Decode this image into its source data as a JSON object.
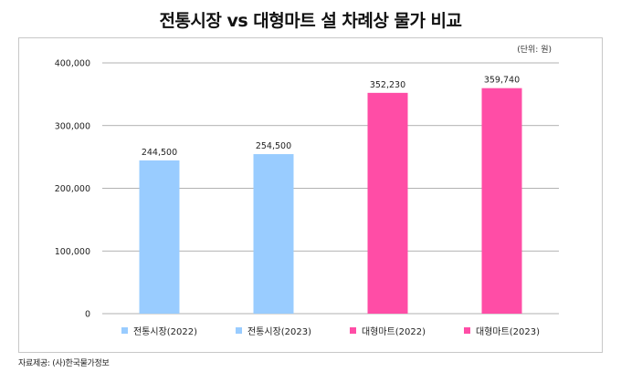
{
  "title": "전통시장 vs 대형마트 설 차례상 물가 비교",
  "unit_label": "(단위: 원)",
  "source": "자료제공: (사)한국물가정보",
  "colors": {
    "traditional": "#99ccff",
    "mart": "#ff4da6",
    "gridline": "#999999"
  },
  "chart_data": {
    "type": "bar",
    "title": "전통시장 vs 대형마트 설 차례상 물가 비교",
    "xlabel": "",
    "ylabel": "",
    "ylim": [
      0,
      400000
    ],
    "yticks": [
      "0",
      "100,000",
      "200,000",
      "300,000",
      "400,000"
    ],
    "grid": true,
    "legend_position": "bottom",
    "categories": [
      "전통시장(2022)",
      "전통시장(2023)",
      "대형마트(2022)",
      "대형마트(2023)"
    ],
    "values": [
      244500,
      254500,
      352230,
      359740
    ],
    "value_labels": [
      "244,500",
      "254,500",
      "352,230",
      "359,740"
    ],
    "bar_colors": [
      "#99ccff",
      "#99ccff",
      "#ff4da6",
      "#ff4da6"
    ]
  }
}
